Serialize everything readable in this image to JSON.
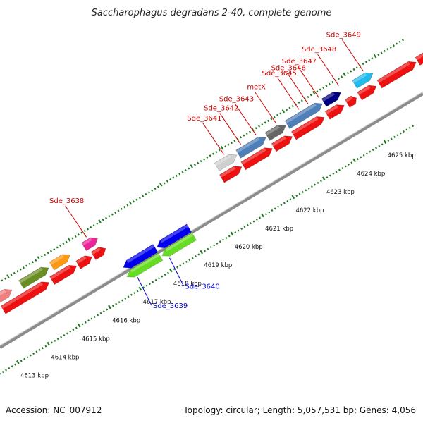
{
  "title": "Saccharophagus degradans 2-40, complete genome",
  "footer": {
    "accession": "Accession: NC_007912",
    "summary": "Topology: circular; Length: 5,057,531 bp; Genes: 4,056"
  },
  "colors": {
    "backbone": "#8c8c8c",
    "tick": "#1f7a1f",
    "label_red": "#cc0000",
    "label_blue": "#0000cc",
    "cds_red": "#ee1111"
  },
  "scale": {
    "ticks": [
      {
        "kbp": 4613,
        "label": "4613 kbp"
      },
      {
        "kbp": 4614,
        "label": "4614 kbp"
      },
      {
        "kbp": 4615,
        "label": "4615 kbp"
      },
      {
        "kbp": 4616,
        "label": "4616 kbp"
      },
      {
        "kbp": 4617,
        "label": "4617 kbp"
      },
      {
        "kbp": 4618,
        "label": "4618 kbp"
      },
      {
        "kbp": 4619,
        "label": "4619 kbp"
      },
      {
        "kbp": 4620,
        "label": "4620 kbp"
      },
      {
        "kbp": 4621,
        "label": "4621 kbp"
      },
      {
        "kbp": 4622,
        "label": "4622 kbp"
      },
      {
        "kbp": 4623,
        "label": "4623 kbp"
      },
      {
        "kbp": 4624,
        "label": "4624 kbp"
      },
      {
        "kbp": 4625,
        "label": "4625 kbp"
      }
    ]
  },
  "gene_labels": [
    {
      "name": "Sde_3638",
      "kbp": 4616.45,
      "color": "#cc0000"
    },
    {
      "name": "Sde_3641",
      "kbp": 4620.95,
      "color": "#cc0000"
    },
    {
      "name": "Sde_3642",
      "kbp": 4621.5,
      "color": "#cc0000"
    },
    {
      "name": "Sde_3643",
      "kbp": 4622.0,
      "color": "#cc0000"
    },
    {
      "name": "metX",
      "kbp": 4622.65,
      "color": "#cc0000"
    },
    {
      "name": "Sde_3645",
      "kbp": 4623.4,
      "color": "#cc0000"
    },
    {
      "name": "Sde_3646",
      "kbp": 4623.7,
      "color": "#cc0000"
    },
    {
      "name": "Sde_3647",
      "kbp": 4624.05,
      "color": "#cc0000"
    },
    {
      "name": "Sde_3648",
      "kbp": 4624.7,
      "color": "#cc0000"
    },
    {
      "name": "Sde_3649",
      "kbp": 4625.5,
      "color": "#cc0000"
    },
    {
      "name": "Sde_3639",
      "kbp": 4617.1,
      "color": "#0000cc"
    },
    {
      "name": "Sde_3640",
      "kbp": 4618.15,
      "color": "#0000cc"
    }
  ]
}
